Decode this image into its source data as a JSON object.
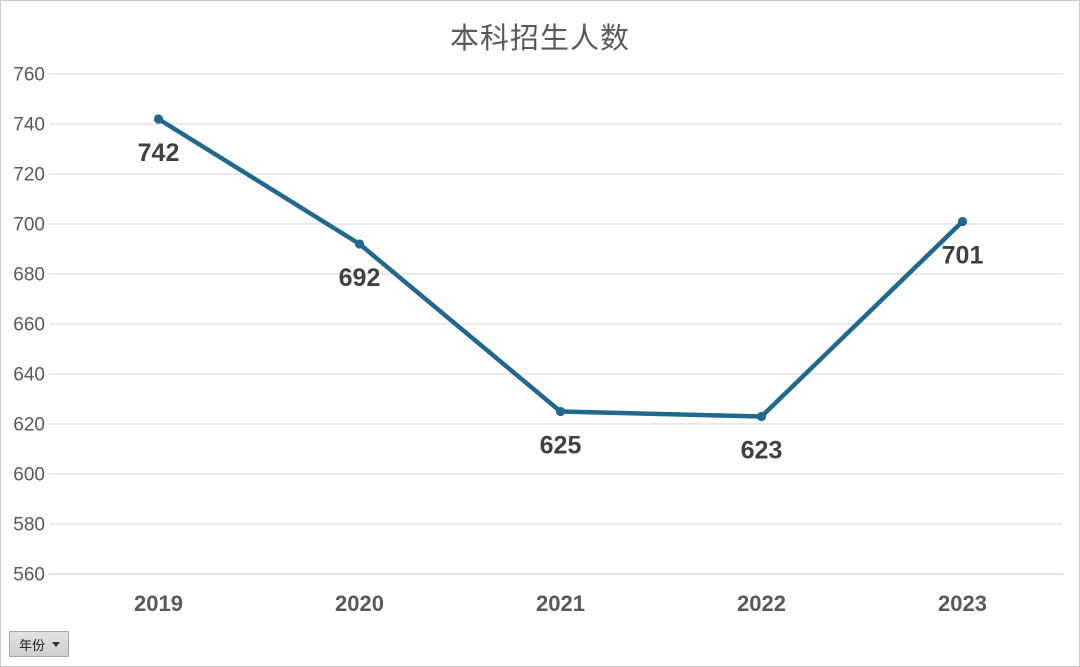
{
  "chart_data": {
    "type": "line",
    "title": "本科招生人数",
    "categories": [
      "2019",
      "2020",
      "2021",
      "2022",
      "2023"
    ],
    "values": [
      742,
      692,
      625,
      623,
      701
    ],
    "xlabel": "",
    "ylabel": "",
    "ylim": [
      560,
      760
    ],
    "ytick_step": 20,
    "grid": true,
    "legend": "none",
    "marker": "circle",
    "data_label_position": "below-point",
    "line_color": "#20698C"
  },
  "filter_button": {
    "label": "年份",
    "icon": "chevron-down"
  },
  "colors": {
    "title_text": "#595959",
    "axis_text": "#595959",
    "data_label_text": "#404040",
    "gridline": "#DCDCDC",
    "bottom_gridline": "#D0D0D0",
    "background": "#FFFFFF",
    "canvas_border": "#C9C9C9",
    "filter_bg": "#D9D9D9",
    "filter_border": "#A6A6A6"
  }
}
